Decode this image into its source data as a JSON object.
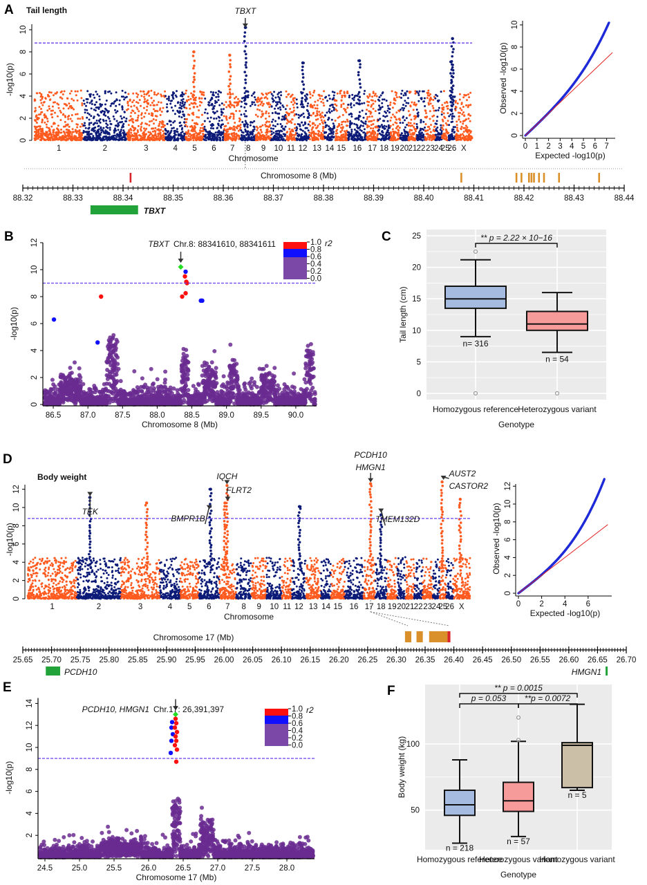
{
  "colors": {
    "odd_chrom": "#ff5a1f",
    "even_chrom": "#0c1a78",
    "threshold": "#6b3cf0",
    "qq_points": "#1f2bd8",
    "qq_line": "#e52222",
    "regional_bg": "#6a2c91",
    "lead_snp": "#22dd22",
    "r2_high": "#ff1010",
    "r2_mid": "#1010ff",
    "r2_low": "#7b48a8",
    "gene": "#22a33a",
    "variant_lead": "#d8242b",
    "variant_other": "#d9902a",
    "box_ref": "#a6bbe0",
    "box_het": "#f79a9a",
    "box_homvar": "#cbbfa8",
    "panel_bg": "#ebebeb"
  },
  "panel_letters": [
    "A",
    "B",
    "C",
    "D",
    "E",
    "F"
  ],
  "panelA": {
    "title": "Tail length",
    "manhattan": {
      "type": "scatter",
      "ylabel": "-log10(p)",
      "xlabel": "Chromosome",
      "ylim": [
        0,
        11
      ],
      "yticks": [
        "0",
        "2",
        "4",
        "6",
        "8",
        "10"
      ],
      "threshold": 8.8,
      "chromosomes": [
        "1",
        "2",
        "3",
        "4",
        "5",
        "6",
        "7",
        "8",
        "9",
        "10",
        "11",
        "12",
        "13",
        "14",
        "15",
        "16",
        "17",
        "18",
        "19",
        "20",
        "21",
        "22",
        "23",
        "24",
        "25",
        "26",
        "X"
      ],
      "peaks": [
        {
          "chr": "8",
          "value": 10.2,
          "label": "TBXT"
        },
        {
          "chr": "26",
          "value": 9.2
        },
        {
          "chr": "5",
          "value": 8.0
        },
        {
          "chr": "7",
          "value": 7.7
        },
        {
          "chr": "16",
          "value": 7.2
        },
        {
          "chr": "12",
          "value": 7.0
        },
        {
          "chr": "26",
          "value": 7.1
        }
      ]
    },
    "qq": {
      "type": "scatter",
      "xlabel": "Expected -log10(p)",
      "ylabel": "Observed -log10(p)",
      "xticks": [
        "0",
        "1",
        "2",
        "3",
        "4",
        "5",
        "6",
        "7"
      ],
      "yticks": [
        "0",
        "2",
        "4",
        "6",
        "8",
        "10"
      ],
      "expected_max": 7.2,
      "observed_max": 10.2
    },
    "track": {
      "label": "Chromosome 8 (Mb)",
      "ticks": [
        "88.32",
        "88.33",
        "88.34",
        "88.35",
        "88.36",
        "88.37",
        "88.38",
        "88.39",
        "88.40",
        "88.41",
        "88.42",
        "88.43",
        "88.44"
      ],
      "lead_variants": [
        88.3415
      ],
      "other_variants": [
        88.4075,
        88.4185,
        88.4195,
        88.421,
        88.4215,
        88.422,
        88.423,
        88.424,
        88.427,
        88.435
      ],
      "gene": {
        "name": "TBXT",
        "start": 88.3335,
        "end": 88.343
      }
    }
  },
  "panelB": {
    "type": "scatter",
    "title_gene": "TBXT",
    "title_pos": "Chr.8: 88341610, 88341611",
    "ylabel": "-log10(p)",
    "xlabel": "Chromosome 8 (Mb)",
    "xlim": [
      86.35,
      90.3
    ],
    "ylim": [
      0,
      12
    ],
    "xticks": [
      "86.5",
      "87.0",
      "87.5",
      "88.0",
      "88.5",
      "89.0",
      "89.5",
      "90.0"
    ],
    "yticks": [
      "0",
      "2",
      "4",
      "6",
      "8",
      "10",
      "12"
    ],
    "threshold": 9,
    "legend": {
      "title": "r2",
      "ticks": [
        "1.0",
        "0.8",
        "0.6",
        "0.4",
        "0.2",
        "0.0"
      ]
    },
    "highlight": [
      {
        "x": 88.34,
        "y": 10.2,
        "r2": "lead"
      },
      {
        "x": 88.41,
        "y": 9.85,
        "r2": "mid"
      },
      {
        "x": 88.4,
        "y": 9.5,
        "r2": "high"
      },
      {
        "x": 88.42,
        "y": 9.1,
        "r2": "high"
      },
      {
        "x": 88.43,
        "y": 9.0,
        "r2": "high"
      },
      {
        "x": 88.36,
        "y": 8.0,
        "r2": "high"
      },
      {
        "x": 88.41,
        "y": 8.25,
        "r2": "high"
      },
      {
        "x": 87.19,
        "y": 8.0,
        "r2": "high"
      },
      {
        "x": 86.51,
        "y": 6.3,
        "r2": "mid"
      },
      {
        "x": 88.63,
        "y": 7.7,
        "r2": "mid"
      },
      {
        "x": 88.65,
        "y": 7.7,
        "r2": "mid"
      },
      {
        "x": 87.14,
        "y": 4.6,
        "r2": "mid"
      }
    ]
  },
  "panelC": {
    "type": "box",
    "ylabel": "Tail length (cm)",
    "xlabel": "Genotype",
    "ylim": [
      -1,
      26
    ],
    "yticks": [
      0,
      5,
      10,
      15,
      20,
      25
    ],
    "categories": [
      "Homozygous reference",
      "Heterozygous variant"
    ],
    "boxes": [
      {
        "whisker_low": 9,
        "q1": 13.5,
        "median": 15,
        "q3": 17,
        "whisker_high": 21.2,
        "outliers": [
          22.5,
          0
        ],
        "n_label": "n= 316"
      },
      {
        "whisker_low": 6.5,
        "q1": 10,
        "median": 11,
        "q3": 13,
        "whisker_high": 16,
        "outliers": [
          0
        ],
        "n_label": "n = 54"
      }
    ],
    "significance": [
      {
        "from": 0,
        "to": 1,
        "label": "** p = 2.22 × 10−16"
      }
    ]
  },
  "panelD": {
    "title": "Body weight",
    "manhattan": {
      "type": "scatter",
      "ylabel": "-log10(p)",
      "xlabel": "Chromosome",
      "ylim": [
        0,
        13
      ],
      "yticks": [
        "0",
        "2",
        "4",
        "6",
        "8",
        "10",
        "12"
      ],
      "threshold": 8.8,
      "chromosomes": [
        "1",
        "2",
        "3",
        "4",
        "5",
        "6",
        "7",
        "8",
        "9",
        "10",
        "11",
        "12",
        "13",
        "14",
        "15",
        "16",
        "17",
        "18",
        "19",
        "20",
        "21",
        "22",
        "23",
        "24",
        "25",
        "26",
        "X"
      ],
      "peaks": [
        {
          "chr": "2",
          "value": 11.1,
          "label": "TEK"
        },
        {
          "chr": "6",
          "value": 12.0,
          "label": "BMPR1B"
        },
        {
          "chr": "7",
          "value": 12.4,
          "label": "IQCH"
        },
        {
          "chr": "7",
          "value": 10.5,
          "label": "FLRT2"
        },
        {
          "chr": "17",
          "value": 12.6,
          "label": "PCDH10\nHMGN1"
        },
        {
          "chr": "18",
          "value": 9.2,
          "label": "TMEM132D"
        },
        {
          "chr": "25",
          "value": 12.8,
          "label": "AUST2\nCASTOR2"
        },
        {
          "chr": "3",
          "value": 10.5
        },
        {
          "chr": "12",
          "value": 10.1
        },
        {
          "chr": "X",
          "value": 10.9
        }
      ]
    },
    "qq": {
      "type": "scatter",
      "xlabel": "Expected -log10(p)",
      "ylabel": "Observed -log10(p)",
      "xticks": [
        "0",
        "2",
        "4",
        "6"
      ],
      "yticks": [
        "0",
        "2",
        "4",
        "6",
        "8",
        "10",
        "12"
      ],
      "expected_max": 7.4,
      "observed_max": 12.8
    },
    "track": {
      "label": "Chromosome 17 (Mb)",
      "ticks": [
        "25.65",
        "25.70",
        "25.75",
        "25.80",
        "25.85",
        "25.90",
        "25.95",
        "26.00",
        "26.05",
        "26.10",
        "26.15",
        "26.20",
        "26.25",
        "26.30",
        "26.35",
        "26.40",
        "26.45",
        "26.50",
        "26.55",
        "26.60",
        "26.65",
        "26.70"
      ],
      "variant_blocks": [
        {
          "start": 26.315,
          "end": 26.326,
          "kind": "other"
        },
        {
          "start": 26.335,
          "end": 26.346,
          "kind": "other"
        },
        {
          "start": 26.357,
          "end": 26.389,
          "kind": "other"
        },
        {
          "start": 26.389,
          "end": 26.394,
          "kind": "lead"
        }
      ],
      "genes": [
        {
          "name": "PCDH10",
          "start": 25.69,
          "end": 25.715
        },
        {
          "name": "HMGN1",
          "start": 26.664,
          "end": 26.667
        }
      ]
    }
  },
  "panelE": {
    "type": "scatter",
    "title_gene": "PCDH10, HMGN1",
    "title_pos": "Chr.17: 26,391,397",
    "ylabel": "-log10(p)",
    "xlabel": "Chromosome 17 (Mb)",
    "xlim": [
      24.4,
      28.4
    ],
    "ylim": [
      0,
      14.5
    ],
    "xticks": [
      "24.5",
      "25.0",
      "25.5",
      "26.0",
      "26.5",
      "27.0",
      "27.5",
      "28.0"
    ],
    "yticks": [
      "2",
      "4",
      "6",
      "8",
      "10",
      "12",
      "14"
    ],
    "threshold": 9,
    "legend": {
      "title": "r2",
      "ticks": [
        "1.0",
        "0.8",
        "0.6",
        "0.4",
        "0.2",
        "0.0"
      ]
    },
    "highlight": [
      {
        "x": 26.39,
        "y": 13.0,
        "r2": "lead"
      },
      {
        "x": 26.34,
        "y": 12.3,
        "r2": "mid"
      },
      {
        "x": 26.33,
        "y": 11.8,
        "r2": "mid"
      },
      {
        "x": 26.35,
        "y": 11.2,
        "r2": "mid"
      },
      {
        "x": 26.33,
        "y": 10.6,
        "r2": "mid"
      },
      {
        "x": 26.32,
        "y": 9.5,
        "r2": "mid"
      },
      {
        "x": 26.39,
        "y": 12.6,
        "r2": "high"
      },
      {
        "x": 26.4,
        "y": 12.2,
        "r2": "high"
      },
      {
        "x": 26.38,
        "y": 11.8,
        "r2": "high"
      },
      {
        "x": 26.41,
        "y": 11.4,
        "r2": "high"
      },
      {
        "x": 26.39,
        "y": 11.0,
        "r2": "high"
      },
      {
        "x": 26.4,
        "y": 10.6,
        "r2": "high"
      },
      {
        "x": 26.38,
        "y": 10.2,
        "r2": "high"
      },
      {
        "x": 26.41,
        "y": 9.8,
        "r2": "high"
      },
      {
        "x": 26.4,
        "y": 8.7,
        "r2": "high"
      }
    ]
  },
  "panelF": {
    "type": "box",
    "ylabel": "Body weight (kg)",
    "xlabel": "Genotype",
    "ylim": [
      20,
      145
    ],
    "yticks": [
      50,
      100
    ],
    "categories": [
      "Homozygous reference",
      "Heterozygous variant",
      "Homozygous variant"
    ],
    "boxes": [
      {
        "whisker_low": 25,
        "q1": 46,
        "median": 54,
        "q3": 65,
        "whisker_high": 88,
        "outliers": [],
        "n_label": "n = 218"
      },
      {
        "whisker_low": 30,
        "q1": 49,
        "median": 57,
        "q3": 71,
        "whisker_high": 102,
        "outliers": [
          103,
          120
        ],
        "n_label": "n = 57"
      },
      {
        "whisker_low": 65,
        "q1": 67,
        "median": 99,
        "q3": 101,
        "whisker_high": 130,
        "outliers": [],
        "n_label": "n = 5"
      }
    ],
    "significance": [
      {
        "from": 0,
        "to": 2,
        "label": "** p = 0.0015"
      },
      {
        "from": 0,
        "to": 1,
        "label": "p = 0.053"
      },
      {
        "from": 1,
        "to": 2,
        "label": "**p = 0.0072"
      }
    ]
  }
}
